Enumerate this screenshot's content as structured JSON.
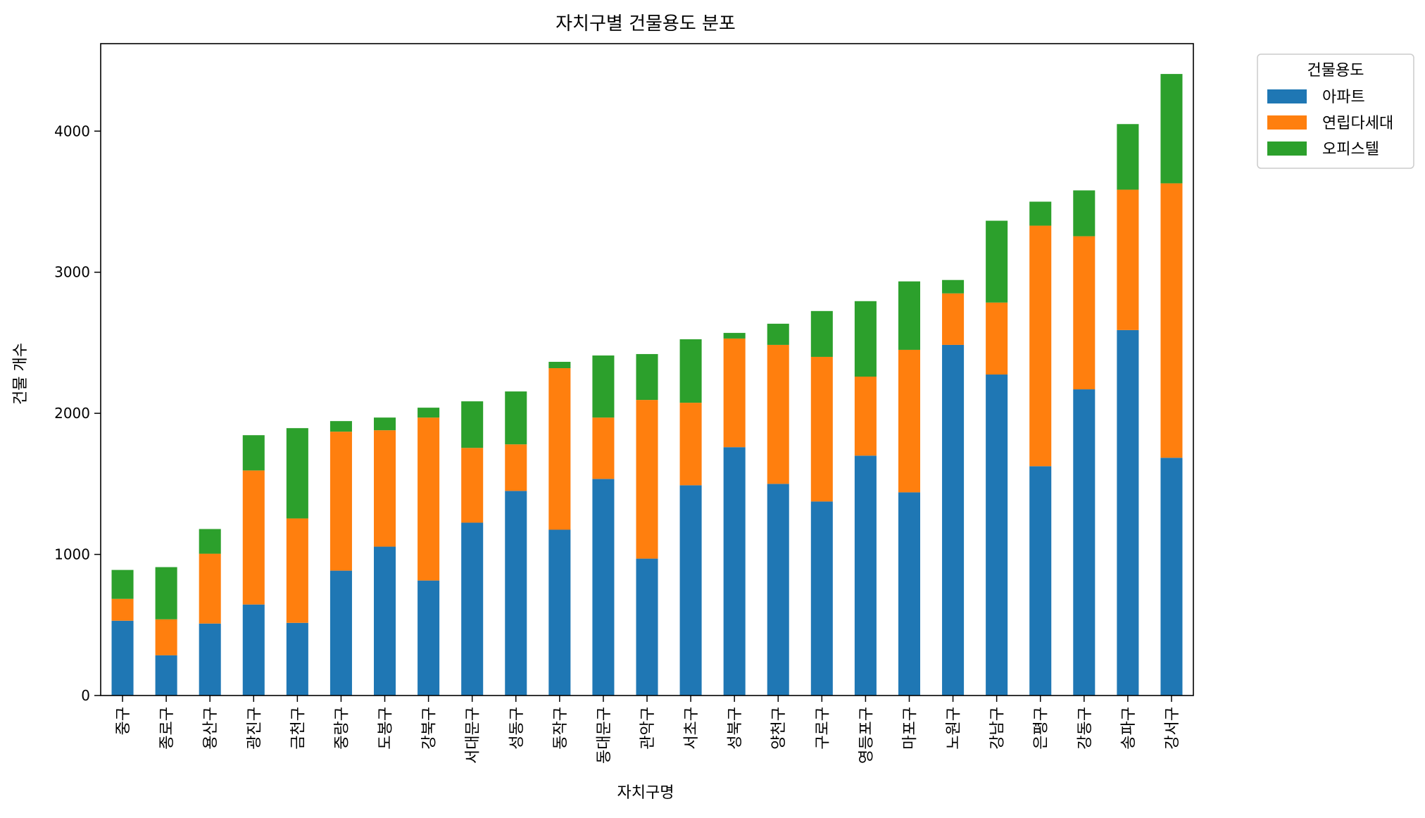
{
  "chart_data": {
    "type": "bar",
    "stacked": true,
    "title": "자치구별 건물용도 분포",
    "xlabel": "자치구명",
    "ylabel": "건물 개수",
    "ylim": [
      0,
      4620
    ],
    "yticks": [
      0,
      1000,
      2000,
      3000,
      4000
    ],
    "grid": false,
    "legend": {
      "title": "건물용도",
      "placement": "outside-top-right"
    },
    "categories": [
      "중구",
      "종로구",
      "용산구",
      "광진구",
      "금천구",
      "중랑구",
      "도봉구",
      "강북구",
      "서대문구",
      "성동구",
      "동작구",
      "동대문구",
      "관악구",
      "서초구",
      "성북구",
      "양천구",
      "구로구",
      "영등포구",
      "마포구",
      "노원구",
      "강남구",
      "은평구",
      "강동구",
      "송파구",
      "강서구"
    ],
    "series": [
      {
        "name": "아파트",
        "color": "#1f77b4",
        "values": [
          530,
          285,
          510,
          645,
          515,
          885,
          1055,
          815,
          1225,
          1450,
          1175,
          1535,
          970,
          1490,
          1760,
          1500,
          1375,
          1700,
          1440,
          2485,
          2275,
          1625,
          2170,
          2590,
          1685
        ]
      },
      {
        "name": "연립다세대",
        "color": "#ff7f0e",
        "values": [
          155,
          255,
          495,
          950,
          740,
          985,
          825,
          1155,
          530,
          330,
          1145,
          435,
          1125,
          585,
          770,
          985,
          1025,
          560,
          1010,
          365,
          510,
          1705,
          1085,
          995,
          1945
        ]
      },
      {
        "name": "오피스텔",
        "color": "#2ca02c",
        "values": [
          205,
          370,
          175,
          250,
          640,
          75,
          90,
          70,
          330,
          375,
          45,
          440,
          325,
          450,
          40,
          150,
          325,
          535,
          485,
          95,
          580,
          170,
          325,
          465,
          775
        ]
      }
    ]
  }
}
